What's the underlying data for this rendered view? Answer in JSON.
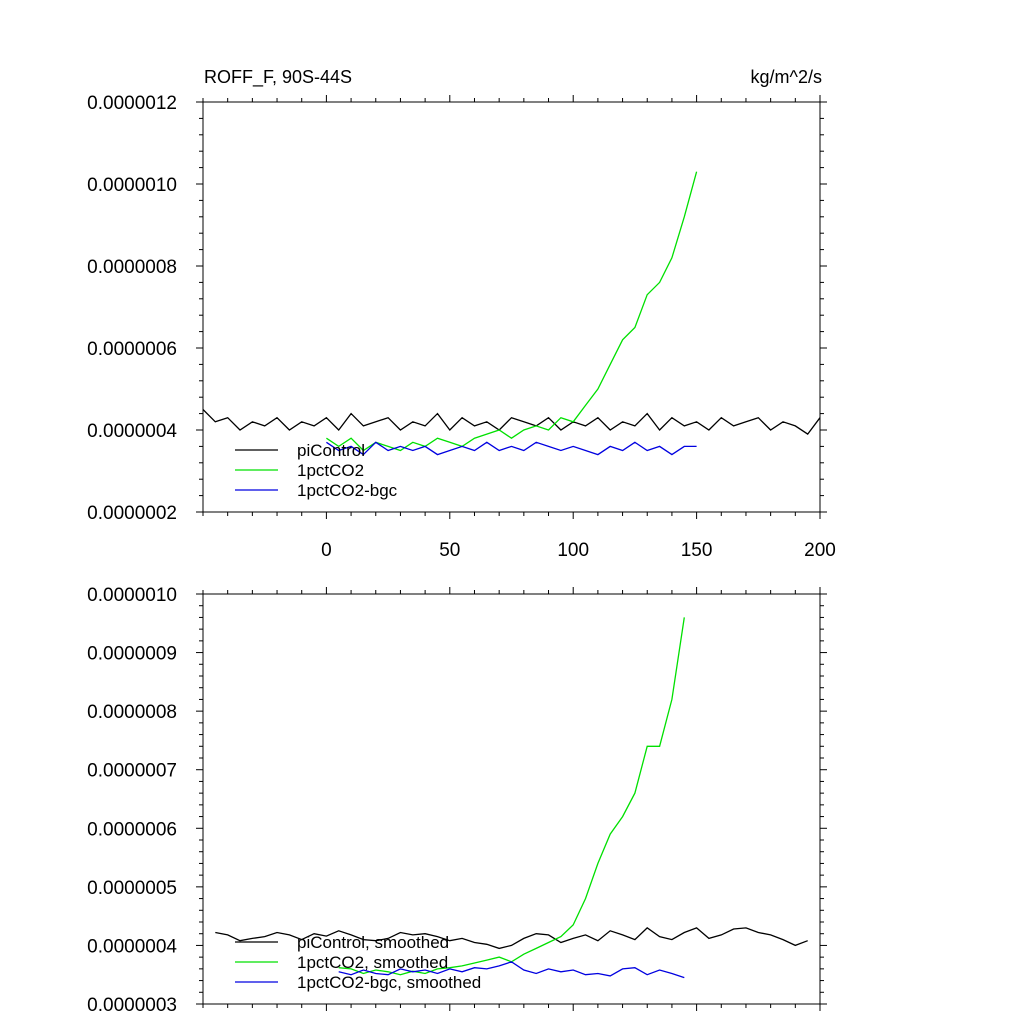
{
  "chart_data": [
    {
      "type": "line",
      "title_left": "ROFF_F, 90S-44S",
      "title_right": "kg/m^2/s",
      "xlim": [
        -50,
        200
      ],
      "ylim": [
        2e-07,
        1.2e-06
      ],
      "x_ticks": [
        0,
        50,
        100,
        150,
        200
      ],
      "x_tick_labels": [
        "0",
        "50",
        "100",
        "150",
        "200"
      ],
      "y_ticks": [
        2e-07,
        4e-07,
        6e-07,
        8e-07,
        1e-06,
        1.2e-06
      ],
      "y_tick_labels": [
        "0.0000002",
        "0.0000004",
        "0.0000006",
        "0.0000008",
        "0.0000010",
        "0.0000012"
      ],
      "legend_position": "bottom-left",
      "series": [
        {
          "name": "piControl",
          "color": "#000000",
          "x": [
            -50,
            -45,
            -40,
            -35,
            -30,
            -25,
            -20,
            -15,
            -10,
            -5,
            0,
            5,
            10,
            15,
            20,
            25,
            30,
            35,
            40,
            45,
            50,
            55,
            60,
            65,
            70,
            75,
            80,
            85,
            90,
            95,
            100,
            105,
            110,
            115,
            120,
            125,
            130,
            135,
            140,
            145,
            150,
            155,
            160,
            165,
            170,
            175,
            180,
            185,
            190,
            195,
            200
          ],
          "y": [
            4.5e-07,
            4.2e-07,
            4.3e-07,
            4e-07,
            4.2e-07,
            4.1e-07,
            4.3e-07,
            4e-07,
            4.2e-07,
            4.1e-07,
            4.3e-07,
            4e-07,
            4.4e-07,
            4.1e-07,
            4.2e-07,
            4.3e-07,
            4e-07,
            4.2e-07,
            4.1e-07,
            4.4e-07,
            4e-07,
            4.3e-07,
            4.1e-07,
            4.2e-07,
            4e-07,
            4.3e-07,
            4.2e-07,
            4.1e-07,
            4.3e-07,
            4e-07,
            4.2e-07,
            4.1e-07,
            4.3e-07,
            4e-07,
            4.2e-07,
            4.1e-07,
            4.4e-07,
            4e-07,
            4.3e-07,
            4.1e-07,
            4.2e-07,
            4e-07,
            4.3e-07,
            4.1e-07,
            4.2e-07,
            4.3e-07,
            4e-07,
            4.2e-07,
            4.1e-07,
            3.9e-07,
            4.3e-07
          ]
        },
        {
          "name": "1pctCO2",
          "color": "#00e000",
          "x": [
            0,
            5,
            10,
            15,
            20,
            25,
            30,
            35,
            40,
            45,
            50,
            55,
            60,
            65,
            70,
            75,
            80,
            85,
            90,
            95,
            100,
            105,
            110,
            115,
            120,
            125,
            130,
            135,
            140,
            145,
            150
          ],
          "y": [
            3.8e-07,
            3.6e-07,
            3.8e-07,
            3.5e-07,
            3.7e-07,
            3.6e-07,
            3.5e-07,
            3.7e-07,
            3.6e-07,
            3.8e-07,
            3.7e-07,
            3.6e-07,
            3.8e-07,
            3.9e-07,
            4e-07,
            3.8e-07,
            4e-07,
            4.1e-07,
            4e-07,
            4.3e-07,
            4.2e-07,
            4.6e-07,
            5e-07,
            5.6e-07,
            6.2e-07,
            6.5e-07,
            7.3e-07,
            7.6e-07,
            8.2e-07,
            9.2e-07,
            1.03e-06
          ]
        },
        {
          "name": "1pctCO2-bgc",
          "color": "#0000e0",
          "x": [
            0,
            5,
            10,
            15,
            20,
            25,
            30,
            35,
            40,
            45,
            50,
            55,
            60,
            65,
            70,
            75,
            80,
            85,
            90,
            95,
            100,
            105,
            110,
            115,
            120,
            125,
            130,
            135,
            140,
            145,
            150
          ],
          "y": [
            3.7e-07,
            3.5e-07,
            3.6e-07,
            3.4e-07,
            3.7e-07,
            3.5e-07,
            3.6e-07,
            3.5e-07,
            3.6e-07,
            3.4e-07,
            3.5e-07,
            3.6e-07,
            3.5e-07,
            3.7e-07,
            3.5e-07,
            3.6e-07,
            3.5e-07,
            3.7e-07,
            3.6e-07,
            3.5e-07,
            3.6e-07,
            3.5e-07,
            3.4e-07,
            3.6e-07,
            3.5e-07,
            3.7e-07,
            3.5e-07,
            3.6e-07,
            3.4e-07,
            3.6e-07,
            3.6e-07
          ]
        }
      ]
    },
    {
      "type": "line",
      "xlim": [
        -50,
        200
      ],
      "ylim": [
        3e-07,
        1e-06
      ],
      "x_ticks": [
        0,
        50,
        100,
        150,
        200
      ],
      "y_ticks": [
        3e-07,
        4e-07,
        5e-07,
        6e-07,
        7e-07,
        8e-07,
        9e-07,
        1e-06
      ],
      "y_tick_labels": [
        "0.0000003",
        "0.0000004",
        "0.0000005",
        "0.0000006",
        "0.0000007",
        "0.0000008",
        "0.0000009",
        "0.0000010"
      ],
      "legend_position": "bottom-left",
      "series": [
        {
          "name": "piControl, smoothed",
          "color": "#000000",
          "x": [
            -45,
            -40,
            -35,
            -30,
            -25,
            -20,
            -15,
            -10,
            -5,
            0,
            5,
            10,
            15,
            20,
            25,
            30,
            35,
            40,
            45,
            50,
            55,
            60,
            65,
            70,
            75,
            80,
            85,
            90,
            95,
            100,
            105,
            110,
            115,
            120,
            125,
            130,
            135,
            140,
            145,
            150,
            155,
            160,
            165,
            170,
            175,
            180,
            185,
            190,
            195
          ],
          "y": [
            4.22e-07,
            4.18e-07,
            4.08e-07,
            4.12e-07,
            4.15e-07,
            4.22e-07,
            4.18e-07,
            4.1e-07,
            4.2e-07,
            4.16e-07,
            4.25e-07,
            4.18e-07,
            4.1e-07,
            4.08e-07,
            4.12e-07,
            4.22e-07,
            4.18e-07,
            4.2e-07,
            4.15e-07,
            4.08e-07,
            4.12e-07,
            4.05e-07,
            4.02e-07,
            3.95e-07,
            4e-07,
            4.12e-07,
            4.2e-07,
            4.18e-07,
            4.05e-07,
            4.12e-07,
            4.18e-07,
            4.08e-07,
            4.25e-07,
            4.18e-07,
            4.1e-07,
            4.3e-07,
            4.15e-07,
            4.1e-07,
            4.22e-07,
            4.3e-07,
            4.12e-07,
            4.18e-07,
            4.28e-07,
            4.3e-07,
            4.22e-07,
            4.18e-07,
            4.1e-07,
            4e-07,
            4.08e-07
          ]
        },
        {
          "name": "1pctCO2, smoothed",
          "color": "#00e000",
          "x": [
            5,
            10,
            15,
            20,
            25,
            30,
            35,
            40,
            45,
            50,
            55,
            60,
            65,
            70,
            75,
            80,
            85,
            90,
            95,
            100,
            105,
            110,
            115,
            120,
            125,
            130,
            135,
            140,
            145
          ],
          "y": [
            3.62e-07,
            3.6e-07,
            3.52e-07,
            3.58e-07,
            3.55e-07,
            3.5e-07,
            3.56e-07,
            3.52e-07,
            3.6e-07,
            3.62e-07,
            3.65e-07,
            3.7e-07,
            3.75e-07,
            3.8e-07,
            3.72e-07,
            3.85e-07,
            3.95e-07,
            4.05e-07,
            4.15e-07,
            4.35e-07,
            4.8e-07,
            5.4e-07,
            5.9e-07,
            6.2e-07,
            6.6e-07,
            7.4e-07,
            7.4e-07,
            8.2e-07,
            9.6e-07
          ]
        },
        {
          "name": "1pctCO2-bgc, smoothed",
          "color": "#0000e0",
          "x": [
            5,
            10,
            15,
            20,
            25,
            30,
            35,
            40,
            45,
            50,
            55,
            60,
            65,
            70,
            75,
            80,
            85,
            90,
            95,
            100,
            105,
            110,
            115,
            120,
            125,
            130,
            135,
            140,
            145
          ],
          "y": [
            3.55e-07,
            3.5e-07,
            3.58e-07,
            3.52e-07,
            3.5e-07,
            3.6e-07,
            3.55e-07,
            3.58e-07,
            3.52e-07,
            3.6e-07,
            3.55e-07,
            3.62e-07,
            3.6e-07,
            3.65e-07,
            3.72e-07,
            3.58e-07,
            3.52e-07,
            3.6e-07,
            3.55e-07,
            3.58e-07,
            3.5e-07,
            3.52e-07,
            3.48e-07,
            3.6e-07,
            3.62e-07,
            3.5e-07,
            3.58e-07,
            3.52e-07,
            3.45e-07
          ]
        }
      ]
    }
  ]
}
